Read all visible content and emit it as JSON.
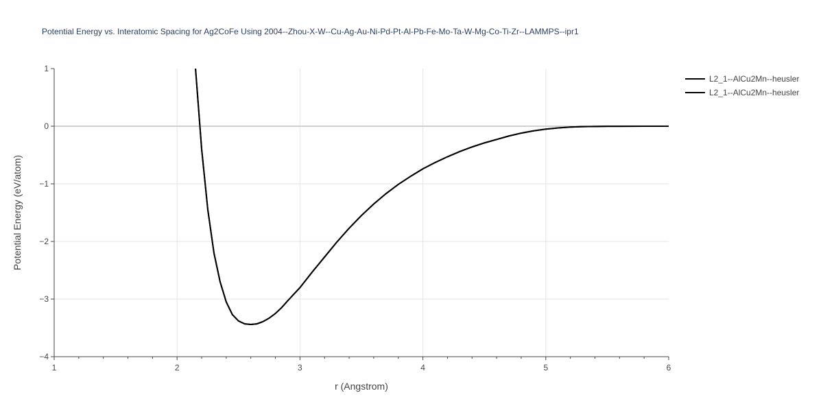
{
  "chart_data": {
    "type": "line",
    "title": "Potential Energy vs. Interatomic Spacing for Ag2CoFe Using 2004--Zhou-X-W--Cu-Ag-Au-Ni-Pd-Pt-Al-Pb-Fe-Mo-Ta-W-Mg-Co-Ti-Zr--LAMMPS--ipr1",
    "xlabel": "r (Angstrom)",
    "ylabel": "Potential Energy (eV/atom)",
    "xlim": [
      1,
      6
    ],
    "ylim": [
      -4,
      1
    ],
    "x_ticks": [
      {
        "value": 1,
        "label": "1"
      },
      {
        "value": 2,
        "label": "2"
      },
      {
        "value": 3,
        "label": "3"
      },
      {
        "value": 4,
        "label": "4"
      },
      {
        "value": 5,
        "label": "5"
      },
      {
        "value": 6,
        "label": "6"
      }
    ],
    "y_ticks": [
      {
        "value": 1,
        "label": "1"
      },
      {
        "value": 0,
        "label": "0"
      },
      {
        "value": -1,
        "label": "−1"
      },
      {
        "value": -2,
        "label": "−2"
      },
      {
        "value": -3,
        "label": "−3"
      },
      {
        "value": -4,
        "label": "−4"
      }
    ],
    "grid": true,
    "legend_position": "top-right",
    "line_color": "#000000",
    "series": [
      {
        "name": "L2_1--AlCu2Mn--heusler",
        "x": [
          2.15,
          2.2,
          2.25,
          2.3,
          2.35,
          2.4,
          2.45,
          2.5,
          2.55,
          2.6,
          2.65,
          2.7,
          2.75,
          2.8,
          2.85,
          2.9,
          3.0,
          3.1,
          3.2,
          3.3,
          3.4,
          3.5,
          3.6,
          3.7,
          3.8,
          3.9,
          4.0,
          4.1,
          4.2,
          4.3,
          4.4,
          4.5,
          4.6,
          4.7,
          4.8,
          4.9,
          5.0,
          5.1,
          5.2,
          5.3,
          5.4,
          5.5,
          5.6,
          5.8,
          6.0
        ],
        "y": [
          1.0,
          -0.4,
          -1.45,
          -2.2,
          -2.7,
          -3.05,
          -3.27,
          -3.38,
          -3.43,
          -3.44,
          -3.43,
          -3.39,
          -3.33,
          -3.25,
          -3.15,
          -3.03,
          -2.8,
          -2.53,
          -2.27,
          -2.01,
          -1.77,
          -1.55,
          -1.35,
          -1.17,
          -1.01,
          -0.87,
          -0.74,
          -0.63,
          -0.53,
          -0.44,
          -0.36,
          -0.29,
          -0.23,
          -0.17,
          -0.12,
          -0.08,
          -0.05,
          -0.03,
          -0.015,
          -0.008,
          -0.004,
          -0.002,
          -0.001,
          0.0,
          0.0
        ]
      },
      {
        "name": "L2_1--AlCu2Mn--heusler",
        "x": [
          2.15,
          2.2,
          2.25,
          2.3,
          2.35,
          2.4,
          2.45,
          2.5,
          2.55,
          2.6,
          2.65,
          2.7,
          2.75,
          2.8,
          2.85,
          2.9,
          3.0,
          3.1,
          3.2,
          3.3,
          3.4,
          3.5,
          3.6,
          3.7,
          3.8,
          3.9,
          4.0,
          4.1,
          4.2,
          4.3,
          4.4,
          4.5,
          4.6,
          4.7,
          4.8,
          4.9,
          5.0,
          5.1,
          5.2,
          5.3,
          5.4,
          5.5,
          5.6,
          5.8,
          6.0
        ],
        "y": [
          1.0,
          -0.4,
          -1.45,
          -2.2,
          -2.7,
          -3.05,
          -3.27,
          -3.38,
          -3.43,
          -3.44,
          -3.43,
          -3.39,
          -3.33,
          -3.25,
          -3.15,
          -3.03,
          -2.8,
          -2.53,
          -2.27,
          -2.01,
          -1.77,
          -1.55,
          -1.35,
          -1.17,
          -1.01,
          -0.87,
          -0.74,
          -0.63,
          -0.53,
          -0.44,
          -0.36,
          -0.29,
          -0.23,
          -0.17,
          -0.12,
          -0.08,
          -0.05,
          -0.03,
          -0.015,
          -0.008,
          -0.004,
          -0.002,
          -0.001,
          0.0,
          0.0
        ]
      }
    ]
  }
}
